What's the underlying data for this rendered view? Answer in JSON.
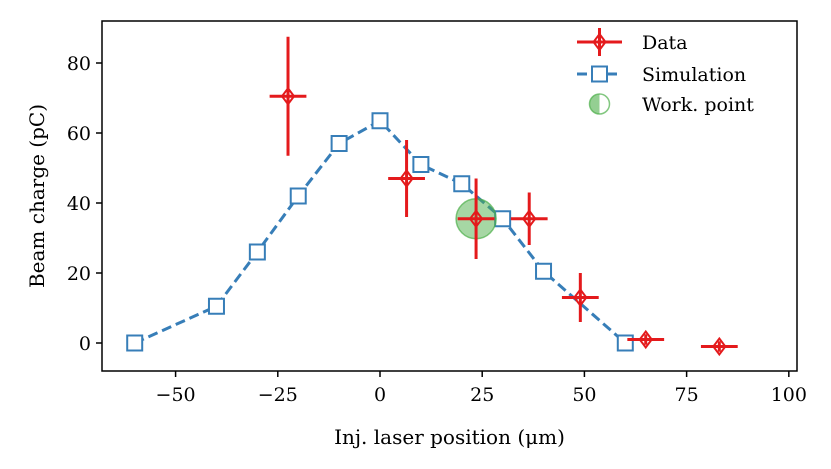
{
  "chart_data": {
    "type": "scatter",
    "title": "",
    "xlabel": "Inj. laser position (μm)",
    "ylabel": "Beam charge (pC)",
    "xlim": [
      -68,
      102
    ],
    "ylim": [
      -8,
      92
    ],
    "x_ticks": [
      -50,
      -25,
      0,
      25,
      50,
      75,
      100
    ],
    "y_ticks": [
      0,
      20,
      40,
      60,
      80
    ],
    "x_tick_labels": [
      "−50",
      "−25",
      "0",
      "25",
      "50",
      "75",
      "100"
    ],
    "y_tick_labels": [
      "0",
      "20",
      "40",
      "60",
      "80"
    ],
    "legend_position": "top-right",
    "colors": {
      "data": "#e41a1c",
      "simulation": "#377eb8",
      "work_point": "#4daf4a"
    },
    "series": [
      {
        "name": "Data",
        "style": "errorbar-diamond",
        "points": [
          {
            "x": -22.5,
            "y": 70.5,
            "xerr": 4.5,
            "yerr": 17
          },
          {
            "x": 6.5,
            "y": 47,
            "xerr": 4.5,
            "yerr": 11
          },
          {
            "x": 23.5,
            "y": 35.5,
            "xerr": 4.5,
            "yerr": 11.5
          },
          {
            "x": 36.5,
            "y": 35.5,
            "xerr": 4.5,
            "yerr": 7.5
          },
          {
            "x": 49,
            "y": 13,
            "xerr": 4.5,
            "yerr": 7
          },
          {
            "x": 65,
            "y": 1,
            "xerr": 4.5,
            "yerr": 1.5
          },
          {
            "x": 83,
            "y": -1,
            "xerr": 4.5,
            "yerr": 1.5
          }
        ]
      },
      {
        "name": "Simulation",
        "style": "dashed-square",
        "x": [
          -60,
          -40,
          -30,
          -20,
          -10,
          0,
          10,
          20,
          30,
          40,
          60
        ],
        "y": [
          0,
          10.5,
          26,
          42,
          57,
          63.5,
          51,
          45.5,
          35.5,
          20.5,
          0
        ]
      },
      {
        "name": "Work. point",
        "style": "circle",
        "x": [
          23.5
        ],
        "y": [
          35.5
        ]
      }
    ],
    "legend": [
      "Data",
      "Simulation",
      "Work. point"
    ]
  }
}
